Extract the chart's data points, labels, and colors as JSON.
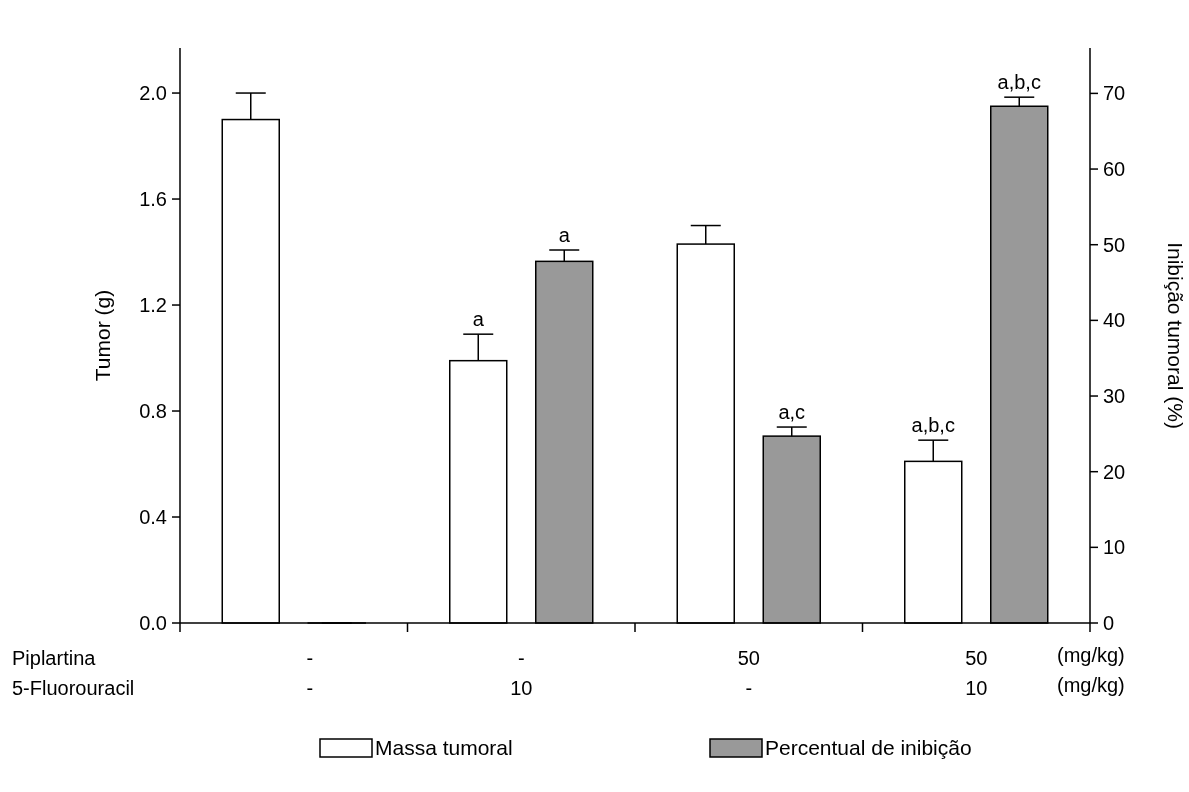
{
  "chart_data": {
    "type": "bar",
    "ylabel": "Tumor (g)",
    "y2label": "Inibição tumoral (%)",
    "categories": [
      null,
      null,
      null,
      null
    ],
    "series": [
      {
        "name": "Massa tumoral",
        "color": "#ffffff",
        "values": [
          1.9,
          0.99,
          1.43,
          0.61
        ],
        "errors": [
          0.1,
          0.1,
          0.07,
          0.08
        ],
        "value_labels": [
          null,
          "a",
          null,
          "a,b,c"
        ]
      },
      {
        "name": "Percentual de inibição",
        "color": "#999999",
        "axis": "y2",
        "values": [
          0,
          47.8,
          24.7,
          68.3
        ],
        "errors": [
          0,
          1.5,
          1.2,
          1.2
        ],
        "value_labels": [
          null,
          "a",
          "a,c",
          "a,b,c"
        ]
      }
    ],
    "ylim": [
      0,
      2.17
    ],
    "yticks": [
      {
        "value": 0,
        "label": "0.0"
      },
      {
        "value": 0.4,
        "label": "0.4"
      },
      {
        "value": 0.8,
        "label": "0.8"
      },
      {
        "value": 1.2,
        "label": "1.2"
      },
      {
        "value": 1.6,
        "label": "1.6"
      },
      {
        "value": 2,
        "label": "2.0"
      }
    ],
    "y2lim": [
      0,
      76
    ],
    "y2ticks": [
      0,
      10,
      20,
      30,
      40,
      50,
      60,
      70
    ],
    "annotations": [
      "Piplartina",
      "-",
      "-",
      "50",
      "50",
      "(mg/kg)",
      "5-Fluorouracil",
      "-",
      "10",
      "-",
      "10",
      "(mg/kg)"
    ],
    "legend": "bottom",
    "grid": false
  }
}
